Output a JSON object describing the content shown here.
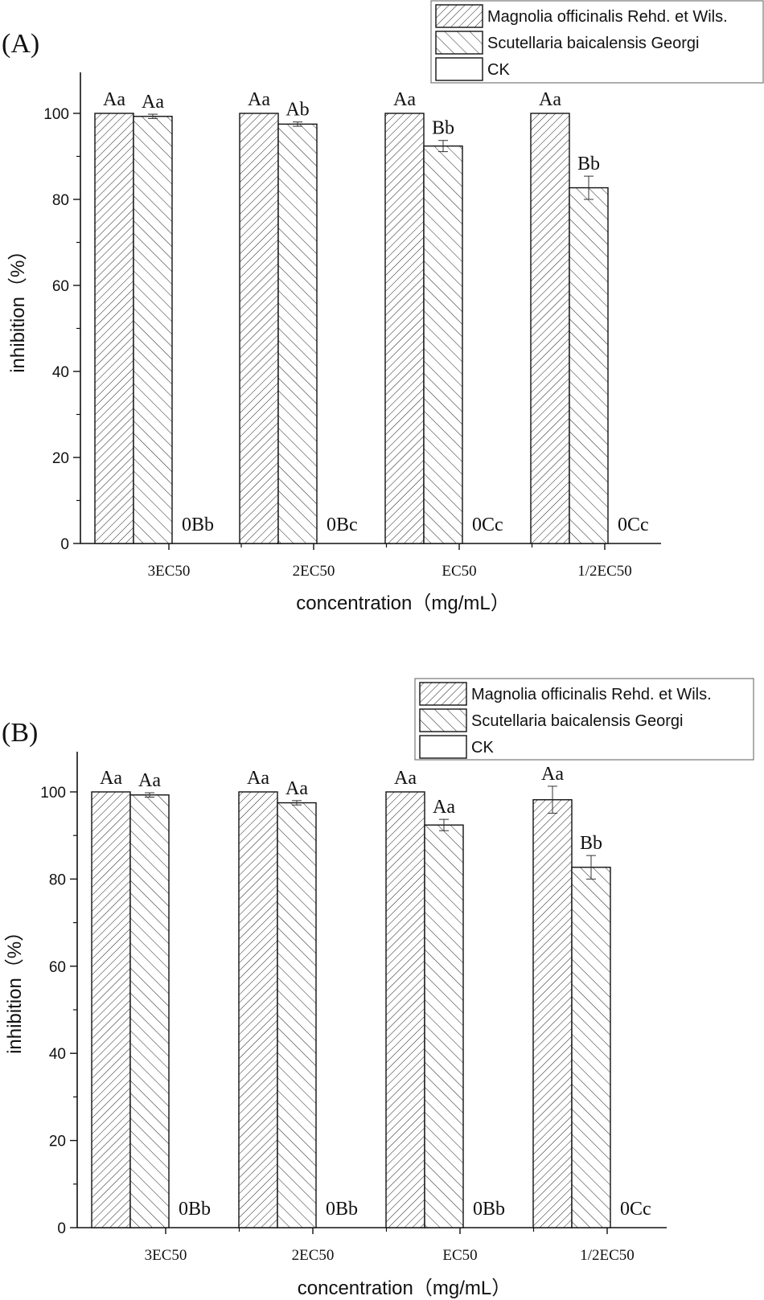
{
  "chart_data": [
    {
      "panel_label": "(A)",
      "type": "bar",
      "xlabel": "concentration（mg/mL）",
      "ylabel": "inhibition（%）",
      "ylim": [
        0,
        110
      ],
      "y_ticks": [
        "0",
        "20",
        "40",
        "60",
        "80",
        "100"
      ],
      "categories": [
        "3EC50",
        "2EC50",
        "EC50",
        "1/2EC50"
      ],
      "legend": {
        "position": "top-right",
        "entries": [
          "Magnolia officinalis Rehd. et Wils.",
          "Scutellaria baicalensis Georgi",
          "CK"
        ]
      },
      "series": [
        {
          "name": "Magnolia officinalis Rehd. et Wils.",
          "values": [
            100,
            100,
            100,
            100
          ],
          "errors": [
            0,
            0,
            0,
            0
          ],
          "labels": [
            "Aa",
            "Aa",
            "Aa",
            "Aa"
          ]
        },
        {
          "name": "Scutellaria baicalensis Georgi",
          "values": [
            99.3,
            97.5,
            92.4,
            82.7
          ],
          "errors": [
            0.5,
            0.5,
            1.3,
            2.7
          ],
          "labels": [
            "Aa",
            "Ab",
            "Bb",
            "Bb"
          ]
        },
        {
          "name": "CK",
          "values": [
            0,
            0,
            0,
            0
          ],
          "errors": [
            0,
            0,
            0,
            0
          ],
          "labels": [
            "0Bb",
            "0Bc",
            "0Cc",
            "0Cc"
          ]
        }
      ]
    },
    {
      "panel_label": "(B)",
      "type": "bar",
      "xlabel": "concentration（mg/mL）",
      "ylabel": "inhibition（%）",
      "ylim": [
        0,
        110
      ],
      "y_ticks": [
        "0",
        "20",
        "40",
        "60",
        "80",
        "100"
      ],
      "categories": [
        "3EC50",
        "2EC50",
        "EC50",
        "1/2EC50"
      ],
      "legend": {
        "position": "top-right",
        "entries": [
          "Magnolia officinalis Rehd. et Wils.",
          "Scutellaria baicalensis Georgi",
          "CK"
        ]
      },
      "series": [
        {
          "name": "Magnolia officinalis Rehd. et Wils.",
          "values": [
            100,
            100,
            100,
            98.2
          ],
          "errors": [
            0,
            0,
            0,
            3.1
          ],
          "labels": [
            "Aa",
            "Aa",
            "Aa",
            "Aa"
          ]
        },
        {
          "name": "Scutellaria baicalensis Georgi",
          "values": [
            99.3,
            97.5,
            92.4,
            82.7
          ],
          "errors": [
            0.5,
            0.5,
            1.3,
            2.7
          ],
          "labels": [
            "Aa",
            "Aa",
            "Aa",
            "Bb"
          ]
        },
        {
          "name": "CK",
          "values": [
            0,
            0,
            0,
            0
          ],
          "errors": [
            0,
            0,
            0,
            0
          ],
          "labels": [
            "0Bb",
            "0Bb",
            "0Bb",
            "0Cc"
          ]
        }
      ]
    }
  ]
}
